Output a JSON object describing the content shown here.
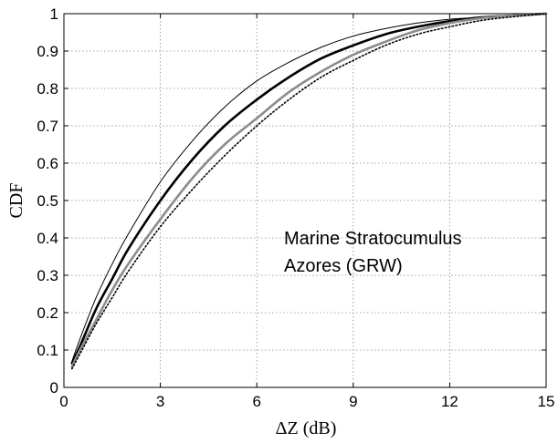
{
  "chart_data": {
    "type": "line",
    "title": "",
    "xlabel": "ΔZ (dB)",
    "ylabel": "CDF",
    "xlim": [
      0,
      15
    ],
    "ylim": [
      0,
      1
    ],
    "xticks": [
      "0",
      "3",
      "6",
      "9",
      "12",
      "15"
    ],
    "yticks": [
      "0",
      "0.1",
      "0.2",
      "0.3",
      "0.4",
      "0.5",
      "0.6",
      "0.7",
      "0.8",
      "0.9",
      "1"
    ],
    "grid": true,
    "annotation": [
      "Marine Stratocumulus",
      "Azores (GRW)"
    ],
    "series": [
      {
        "color": "#000000",
        "style": "solid-thin",
        "x": [
          0.25,
          0.5,
          1,
          1.5,
          2,
          3,
          4,
          5,
          6,
          7,
          8,
          9,
          10,
          11,
          12,
          13,
          14,
          15
        ],
        "y": [
          0.07,
          0.13,
          0.24,
          0.33,
          0.41,
          0.55,
          0.66,
          0.75,
          0.82,
          0.87,
          0.91,
          0.94,
          0.96,
          0.975,
          0.985,
          0.99,
          0.995,
          1.0
        ]
      },
      {
        "color": "#000000",
        "style": "solid-thick",
        "x": [
          0.25,
          0.5,
          1,
          1.5,
          2,
          3,
          4,
          5,
          6,
          7,
          8,
          9,
          10,
          11,
          12,
          13,
          14,
          15
        ],
        "y": [
          0.065,
          0.11,
          0.21,
          0.29,
          0.37,
          0.5,
          0.61,
          0.7,
          0.77,
          0.83,
          0.88,
          0.915,
          0.945,
          0.965,
          0.98,
          0.99,
          0.995,
          1.0
        ]
      },
      {
        "color": "#8c8c8c",
        "style": "solid-thick",
        "x": [
          0.25,
          0.5,
          1,
          1.5,
          2,
          3,
          4,
          5,
          6,
          7,
          8,
          9,
          10,
          11,
          12,
          13,
          14,
          15
        ],
        "y": [
          0.055,
          0.1,
          0.18,
          0.26,
          0.33,
          0.45,
          0.56,
          0.65,
          0.72,
          0.79,
          0.845,
          0.89,
          0.925,
          0.955,
          0.975,
          0.988,
          0.995,
          1.0
        ]
      },
      {
        "color": "#000000",
        "style": "dotted",
        "x": [
          0.25,
          0.5,
          1,
          1.5,
          2,
          3,
          4,
          5,
          6,
          7,
          8,
          9,
          10,
          11,
          12,
          13,
          14,
          15
        ],
        "y": [
          0.05,
          0.09,
          0.17,
          0.24,
          0.31,
          0.43,
          0.53,
          0.62,
          0.7,
          0.77,
          0.83,
          0.875,
          0.915,
          0.945,
          0.965,
          0.982,
          0.992,
          1.0
        ]
      }
    ]
  }
}
